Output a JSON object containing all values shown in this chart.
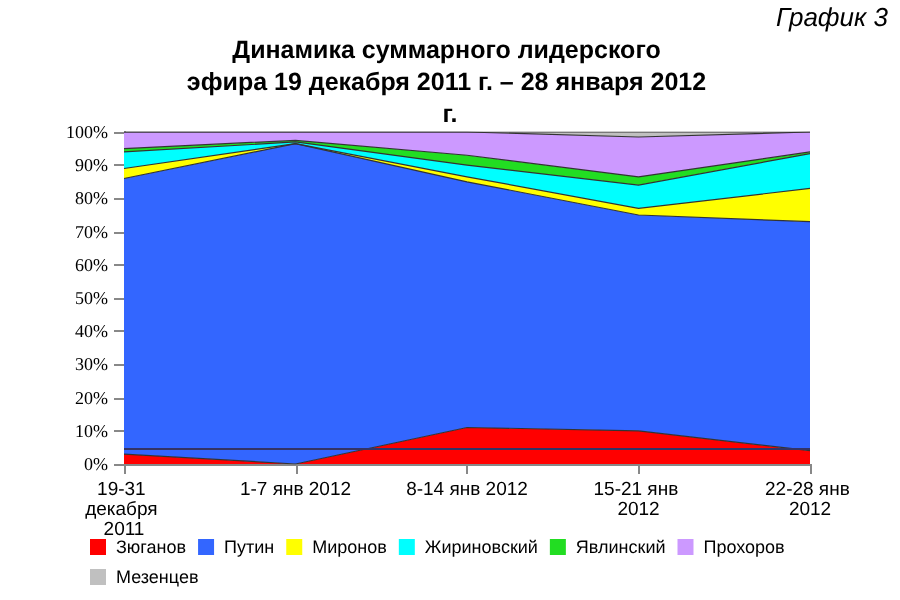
{
  "chart_data": {
    "type": "area",
    "title": "Динамика суммарного лидерского эфира 19 декабря 2011 г. – 28 января 2012 г.",
    "annotations": [
      "График 3"
    ],
    "categories": [
      "19-31 декабря 2011",
      "1-7 янв 2012",
      "8-14 янв 2012",
      "15-21 янв 2012",
      "22-28 янв 2012"
    ],
    "stacked": true,
    "series": [
      {
        "name": "Зюганов",
        "color": "#ff0000",
        "values": [
          3,
          0,
          11,
          10,
          4
        ]
      },
      {
        "name": "Путин",
        "color": "#3366ff",
        "values": [
          83,
          96.5,
          74,
          65,
          69
        ]
      },
      {
        "name": "Миронов",
        "color": "#ffff00",
        "values": [
          3,
          0,
          1.5,
          2,
          10
        ]
      },
      {
        "name": "Жириновский",
        "color": "#00ffff",
        "values": [
          5,
          0.5,
          3.5,
          7,
          10.5
        ]
      },
      {
        "name": "Явлинский",
        "color": "#22dd22",
        "values": [
          1,
          0.5,
          3,
          2.5,
          0.5
        ]
      },
      {
        "name": "Прохоров",
        "color": "#cc99ff",
        "values": [
          5,
          2.5,
          7,
          12,
          6
        ]
      },
      {
        "name": "Мезенцев",
        "color": "#c0c0c0",
        "values": [
          0,
          0,
          0,
          1.5,
          0
        ]
      }
    ],
    "ylim": [
      0,
      100
    ],
    "yticks": [
      {
        "value": 0,
        "label": "0%"
      },
      {
        "value": 10,
        "label": "10%"
      },
      {
        "value": 20,
        "label": "20%"
      },
      {
        "value": 30,
        "label": "30%"
      },
      {
        "value": 40,
        "label": "40%"
      },
      {
        "value": 50,
        "label": "50%"
      },
      {
        "value": 60,
        "label": "60%"
      },
      {
        "value": 70,
        "label": "70%"
      },
      {
        "value": 80,
        "label": "80%"
      },
      {
        "value": 90,
        "label": "90%"
      },
      {
        "value": 100,
        "label": "100%"
      }
    ],
    "ref_lines": [
      {
        "axis": "y",
        "value": 4.5,
        "label": null,
        "color": "#333366"
      }
    ],
    "grid": false,
    "legend": "bottom",
    "marker": "none"
  }
}
